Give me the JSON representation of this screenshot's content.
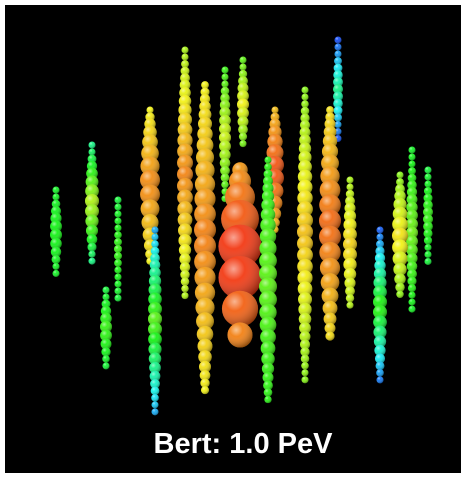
{
  "caption": "Bert: 1.0 PeV"
}
